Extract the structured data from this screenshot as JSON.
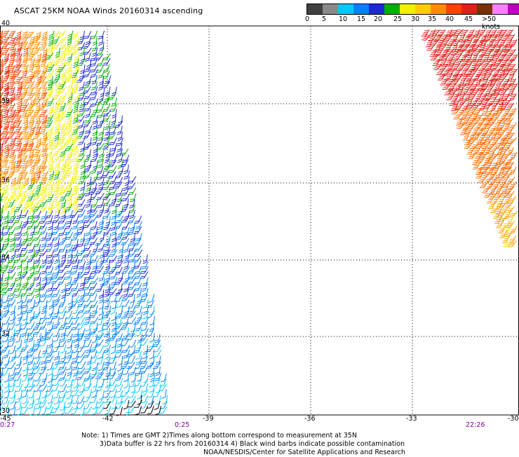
{
  "title": "ASCAT 25KM NOAA Winds 20160314 ascending",
  "legend": {
    "colors": [
      "#404040",
      "#8a8a8a",
      "#00c8ff",
      "#0080ff",
      "#1e28d6",
      "#00b000",
      "#f0f000",
      "#ffcc00",
      "#ff8c00",
      "#ff4000",
      "#e0201a",
      "#7a3000",
      "#ff80ff",
      "#c000c0",
      "#600090"
    ],
    "labels": [
      "0",
      "5",
      "10",
      "15",
      "20",
      "25",
      "30",
      "35",
      "40",
      "45",
      ">50 knots"
    ]
  },
  "map": {
    "lat_labels": [
      "40",
      "38",
      "36",
      "34",
      "32",
      "30"
    ],
    "lon_labels": [
      "-45",
      "-42",
      "-39",
      "-36",
      "-33",
      "-30"
    ],
    "time_labels": [
      "0:27",
      "0:25",
      "22:26"
    ]
  },
  "notes": {
    "line1": "Note: 1) Times are GMT 2)Times along bottom correspond to measurement at 35N",
    "line2": "3)Data buffer is 22 hrs from 20160314 4) Black wind barbs indicate possible contamination",
    "line3": "NOAA/NESDIS/Center for Satellite Applications and Research"
  }
}
